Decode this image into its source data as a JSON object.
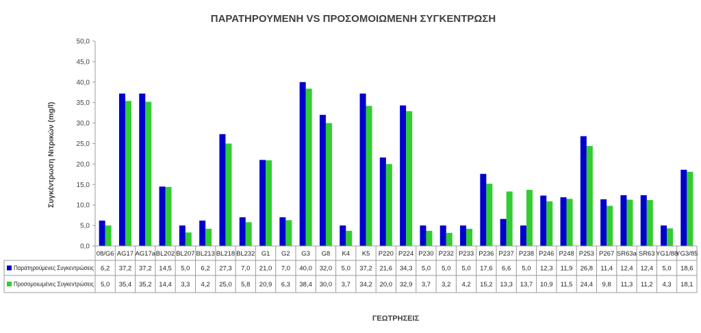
{
  "chart_data": {
    "type": "bar",
    "title": "ΠΑΡΑΤΗΡΟΥΜΕΝΗ VS ΠΡΟΣΟΜΟΙΩΜΕΝΗ ΣΥΓΚΕΝΤΡΩΣΗ",
    "ylabel": "Συγκέντρωση Νιτρικών (mg/l)",
    "xlabel": "ΓΕΩΤΡΗΣΕΙΣ",
    "ylim": [
      0,
      50
    ],
    "yticks": [
      "0,0",
      "5,0",
      "10,0",
      "15,0",
      "20,0",
      "25,0",
      "30,0",
      "35,0",
      "40,0",
      "45,0",
      "50,0"
    ],
    "grid": false,
    "legend": "data-table",
    "categories": [
      "08/G6",
      "AG17",
      "AG17a",
      "BL202",
      "BL207",
      "BL213",
      "BL218",
      "BL232",
      "G1",
      "G2",
      "G3",
      "G8",
      "K4",
      "K5",
      "P220",
      "P224",
      "P230",
      "P232",
      "P233",
      "P236",
      "P237",
      "P238",
      "P246",
      "P248",
      "P253",
      "P267",
      "SR63a",
      "SR63",
      "YG1/88",
      "YG3/85"
    ],
    "series": [
      {
        "name": "Παρατηρούμενες Συγκεντρώσεις",
        "color": "#0000cc",
        "values": [
          6.2,
          37.2,
          37.2,
          14.5,
          5.0,
          6.2,
          27.3,
          7.0,
          21.0,
          7.0,
          40.0,
          32.0,
          5.0,
          37.2,
          21.6,
          34.3,
          5.0,
          5.0,
          5.0,
          17.6,
          6.6,
          5.0,
          12.3,
          11.9,
          26.8,
          11.4,
          12.4,
          12.4,
          5.0,
          18.6
        ],
        "labels": [
          "6,2",
          "37,2",
          "37,2",
          "14,5",
          "5,0",
          "6,2",
          "27,3",
          "7,0",
          "21,0",
          "7,0",
          "40,0",
          "32,0",
          "5,0",
          "37,2",
          "21,6",
          "34,3",
          "5,0",
          "5,0",
          "5,0",
          "17,6",
          "6,6",
          "5,0",
          "12,3",
          "11,9",
          "26,8",
          "11,4",
          "12,4",
          "12,4",
          "5,0",
          "18,6"
        ]
      },
      {
        "name": "Προσομοιωμένες Συγκεντρώσεις",
        "color": "#33cc33",
        "values": [
          5.0,
          35.4,
          35.2,
          14.4,
          3.3,
          4.2,
          25.0,
          5.8,
          20.9,
          6.3,
          38.4,
          30.0,
          3.7,
          34.2,
          20.0,
          32.9,
          3.7,
          3.2,
          4.2,
          15.2,
          13.3,
          13.7,
          10.9,
          11.5,
          24.4,
          9.8,
          11.3,
          11.2,
          4.3,
          18.1
        ],
        "labels": [
          "5,0",
          "35,4",
          "35,2",
          "14,4",
          "3,3",
          "4,2",
          "25,0",
          "5,8",
          "20,9",
          "6,3",
          "38,4",
          "30,0",
          "3,7",
          "34,2",
          "20,0",
          "32,9",
          "3,7",
          "3,2",
          "4,2",
          "15,2",
          "13,3",
          "13,7",
          "10,9",
          "11,5",
          "24,4",
          "9,8",
          "11,3",
          "11,2",
          "4,3",
          "18,1"
        ]
      }
    ]
  }
}
